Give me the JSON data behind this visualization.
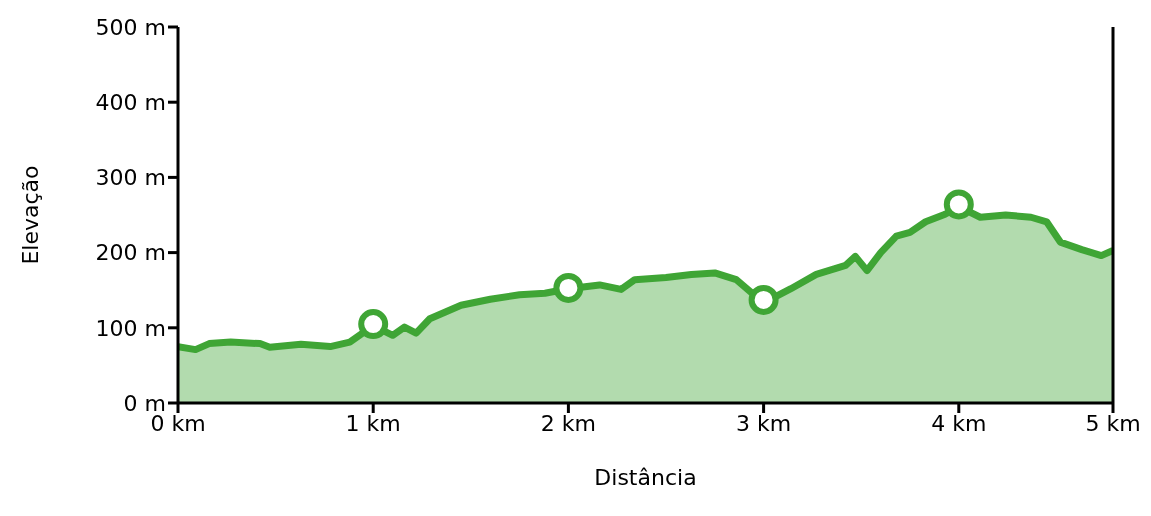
{
  "chart_data": {
    "type": "area",
    "xlabel": "Distância",
    "ylabel": "Elevação",
    "xlim": [
      0,
      4.79
    ],
    "xticks": [
      {
        "value": 0,
        "label": "0 km"
      },
      {
        "value": 1,
        "label": "1 km"
      },
      {
        "value": 2,
        "label": "2 km"
      },
      {
        "value": 3,
        "label": "3 km"
      },
      {
        "value": 4,
        "label": "4 km"
      },
      {
        "value": 4.79,
        "label": "5 km"
      }
    ],
    "ylim": [
      0,
      500
    ],
    "yticks": [
      {
        "value": 0,
        "label": "0 m"
      },
      {
        "value": 100,
        "label": "100 m"
      },
      {
        "value": 200,
        "label": "200 m"
      },
      {
        "value": 300,
        "label": "300 m"
      },
      {
        "value": 400,
        "label": "400 m"
      },
      {
        "value": 500,
        "label": "500 m"
      }
    ],
    "series": [
      {
        "color": "#3fa535",
        "x": [
          0,
          0.09,
          0.16,
          0.27,
          0.42,
          0.47,
          0.63,
          0.78,
          0.88,
          1.0,
          1.1,
          1.16,
          1.22,
          1.29,
          1.45,
          1.6,
          1.75,
          1.88,
          2.0,
          2.16,
          2.27,
          2.34,
          2.5,
          2.63,
          2.75,
          2.86,
          3.0,
          3.14,
          3.27,
          3.42,
          3.47,
          3.53,
          3.6,
          3.68,
          3.75,
          3.83,
          3.93,
          4.0,
          4.11,
          4.24,
          4.37,
          4.45,
          4.52,
          4.63,
          4.73,
          4.79
        ],
        "values": [
          75,
          71,
          79,
          81,
          79,
          74,
          78,
          75,
          81,
          103,
          90,
          101,
          93,
          112,
          130,
          138,
          144,
          146,
          152,
          157,
          151,
          164,
          167,
          171,
          173,
          164,
          133,
          152,
          171,
          183,
          195,
          176,
          200,
          222,
          227,
          241,
          251,
          261,
          247,
          250,
          247,
          241,
          214,
          204,
          196,
          203
        ]
      },
      {
        "type": "scatter",
        "color": "#3fa535",
        "marker": "circle",
        "x": [
          1,
          2,
          3,
          4
        ],
        "values": [
          105,
          153,
          137,
          264
        ]
      }
    ]
  }
}
